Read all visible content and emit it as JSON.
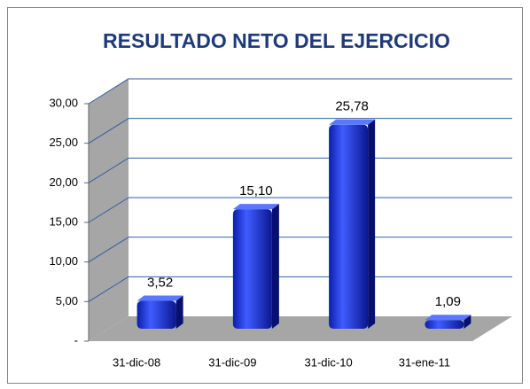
{
  "chart_data": {
    "type": "bar3d",
    "title": "RESULTADO NETO DEL EJERCICIO",
    "categories": [
      "31-dic-08",
      "31-dic-09",
      "31-dic-10",
      "31-ene-11"
    ],
    "values": [
      3.52,
      15.1,
      25.78,
      1.09
    ],
    "value_labels": [
      "3,52",
      "15,10",
      "25,78",
      "1,09"
    ],
    "color": "#1530e0",
    "ylim": [
      0,
      30
    ],
    "yticks": [
      {
        "value": 0,
        "label": "-"
      },
      {
        "value": 5,
        "label": "5,00"
      },
      {
        "value": 10,
        "label": "10,00"
      },
      {
        "value": 15,
        "label": "15,00"
      },
      {
        "value": 20,
        "label": "20,00"
      },
      {
        "value": 25,
        "label": "25,00"
      },
      {
        "value": 30,
        "label": "30,00"
      }
    ],
    "grid": true
  }
}
